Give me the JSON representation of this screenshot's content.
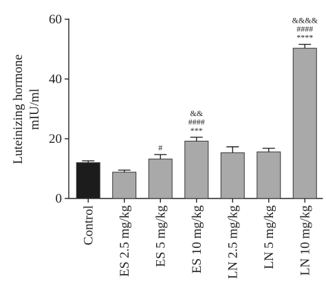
{
  "chart_data": {
    "type": "bar",
    "title": "",
    "xlabel": "",
    "ylabel_line1": "Luteinizing hormone",
    "ylabel_line2": "mIU/ml",
    "ylim": [
      0,
      60
    ],
    "yticks": [
      "0",
      "20",
      "40",
      "60"
    ],
    "ytick_values": [
      0,
      20,
      40,
      60
    ],
    "grid": false,
    "categories": [
      "Control",
      "ES 2.5 mg/kg",
      "ES 5 mg/kg",
      "ES 10 mg/kg",
      "LN 2.5 mg/kg",
      "LN 5 mg/kg",
      "LN 10 mg/kg"
    ],
    "values": [
      12.0,
      8.8,
      13.2,
      19.2,
      15.3,
      15.6,
      50.3
    ],
    "errors": [
      0.6,
      0.7,
      1.5,
      1.3,
      2.0,
      1.2,
      1.3
    ],
    "bar_colors": [
      "#1c1c1c",
      "#a9a9a9",
      "#a9a9a9",
      "#a9a9a9",
      "#a9a9a9",
      "#a9a9a9",
      "#a9a9a9"
    ],
    "annotations": [
      [],
      [],
      [
        "#"
      ],
      [
        "&&",
        "####",
        "***"
      ],
      [],
      [],
      [
        "&&&&",
        "####",
        "****"
      ]
    ]
  }
}
